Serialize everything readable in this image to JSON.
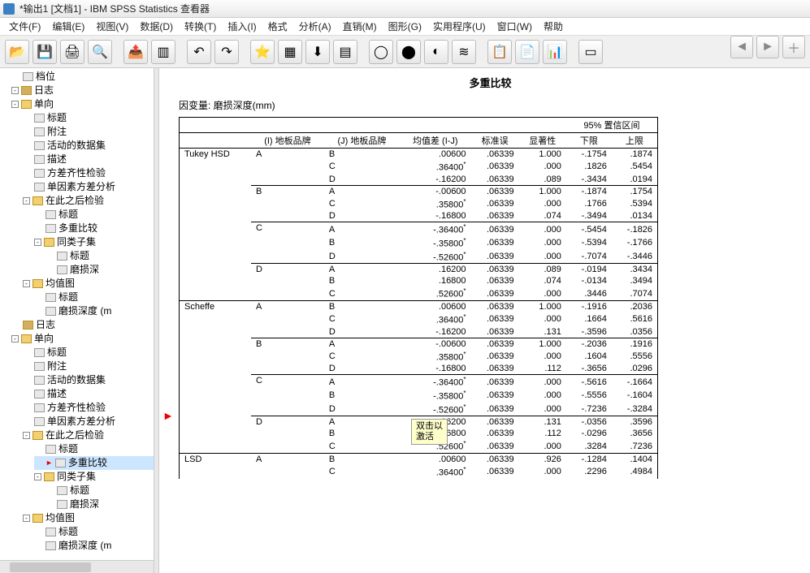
{
  "window": {
    "title": "*输出1 [文档1] - IBM SPSS Statistics 查看器"
  },
  "menu": [
    "文件(F)",
    "编辑(E)",
    "视图(V)",
    "数据(D)",
    "转换(T)",
    "插入(I)",
    "格式",
    "分析(A)",
    "直销(M)",
    "图形(G)",
    "实用程序(U)",
    "窗口(W)",
    "帮助"
  ],
  "tree": {
    "root": [
      {
        "label": "档位",
        "icon": "doc"
      },
      {
        "label": "日志",
        "icon": "log",
        "tog": "-"
      },
      {
        "label": "单向",
        "icon": "fold",
        "tog": "-",
        "children": [
          {
            "label": "标题",
            "icon": "doc"
          },
          {
            "label": "附注",
            "icon": "doc"
          },
          {
            "label": "活动的数据集",
            "icon": "doc"
          },
          {
            "label": "描述",
            "icon": "doc"
          },
          {
            "label": "方差齐性检验",
            "icon": "doc"
          },
          {
            "label": "单因素方差分析",
            "icon": "doc"
          },
          {
            "label": "在此之后检验",
            "icon": "fold",
            "tog": "-",
            "children": [
              {
                "label": "标题",
                "icon": "doc"
              },
              {
                "label": "多重比较",
                "icon": "doc"
              },
              {
                "label": "同类子集",
                "icon": "fold",
                "tog": "-",
                "children": [
                  {
                    "label": "标题",
                    "icon": "doc"
                  },
                  {
                    "label": "磨损深",
                    "icon": "doc"
                  }
                ]
              }
            ]
          },
          {
            "label": "均值图",
            "icon": "fold",
            "tog": "-",
            "children": [
              {
                "label": "标题",
                "icon": "doc"
              },
              {
                "label": "磨损深度 (m",
                "icon": "doc"
              }
            ]
          }
        ]
      },
      {
        "label": "日志",
        "icon": "log",
        "tog": ""
      },
      {
        "label": "单向",
        "icon": "fold",
        "tog": "-",
        "children": [
          {
            "label": "标题",
            "icon": "doc"
          },
          {
            "label": "附注",
            "icon": "doc"
          },
          {
            "label": "活动的数据集",
            "icon": "doc"
          },
          {
            "label": "描述",
            "icon": "doc"
          },
          {
            "label": "方差齐性检验",
            "icon": "doc"
          },
          {
            "label": "单因素方差分析",
            "icon": "doc"
          },
          {
            "label": "在此之后检验",
            "icon": "fold",
            "tog": "-",
            "children": [
              {
                "label": "标题",
                "icon": "doc"
              },
              {
                "label": "多重比较",
                "icon": "doc",
                "sel": true,
                "arrow": true
              },
              {
                "label": "同类子集",
                "icon": "fold",
                "tog": "-",
                "children": [
                  {
                    "label": "标题",
                    "icon": "doc"
                  },
                  {
                    "label": "磨损深",
                    "icon": "doc"
                  }
                ]
              }
            ]
          },
          {
            "label": "均值图",
            "icon": "fold",
            "tog": "-",
            "children": [
              {
                "label": "标题",
                "icon": "doc"
              },
              {
                "label": "磨损深度 (m",
                "icon": "doc"
              }
            ]
          }
        ]
      }
    ]
  },
  "table": {
    "title": "多重比较",
    "depvar": "因变量: 磨损深度(mm)",
    "headers": {
      "i": "(I) 地板品牌",
      "j": "(J) 地板品牌",
      "diff": "均值差 (I-J)",
      "se": "标准误",
      "sig": "显著性",
      "ci": "95% 置信区间",
      "lower": "下限",
      "upper": "上限"
    },
    "methods": [
      {
        "name": "Tukey HSD",
        "groups": [
          {
            "i": "A",
            "rows": [
              {
                "j": "B",
                "diff": ".00600",
                "se": ".06339",
                "sig": "1.000",
                "lo": "-.1754",
                "hi": ".1874"
              },
              {
                "j": "C",
                "diff": ".36400",
                "star": true,
                "se": ".06339",
                "sig": ".000",
                "lo": ".1826",
                "hi": ".5454"
              },
              {
                "j": "D",
                "diff": "-.16200",
                "se": ".06339",
                "sig": ".089",
                "lo": "-.3434",
                "hi": ".0194"
              }
            ]
          },
          {
            "i": "B",
            "rows": [
              {
                "j": "A",
                "diff": "-.00600",
                "se": ".06339",
                "sig": "1.000",
                "lo": "-.1874",
                "hi": ".1754"
              },
              {
                "j": "C",
                "diff": ".35800",
                "star": true,
                "se": ".06339",
                "sig": ".000",
                "lo": ".1766",
                "hi": ".5394"
              },
              {
                "j": "D",
                "diff": "-.16800",
                "se": ".06339",
                "sig": ".074",
                "lo": "-.3494",
                "hi": ".0134"
              }
            ]
          },
          {
            "i": "C",
            "rows": [
              {
                "j": "A",
                "diff": "-.36400",
                "star": true,
                "se": ".06339",
                "sig": ".000",
                "lo": "-.5454",
                "hi": "-.1826"
              },
              {
                "j": "B",
                "diff": "-.35800",
                "star": true,
                "se": ".06339",
                "sig": ".000",
                "lo": "-.5394",
                "hi": "-.1766"
              },
              {
                "j": "D",
                "diff": "-.52600",
                "star": true,
                "se": ".06339",
                "sig": ".000",
                "lo": "-.7074",
                "hi": "-.3446"
              }
            ]
          },
          {
            "i": "D",
            "rows": [
              {
                "j": "A",
                "diff": ".16200",
                "se": ".06339",
                "sig": ".089",
                "lo": "-.0194",
                "hi": ".3434"
              },
              {
                "j": "B",
                "diff": ".16800",
                "se": ".06339",
                "sig": ".074",
                "lo": "-.0134",
                "hi": ".3494"
              },
              {
                "j": "C",
                "diff": ".52600",
                "star": true,
                "se": ".06339",
                "sig": ".000",
                "lo": ".3446",
                "hi": ".7074"
              }
            ]
          }
        ]
      },
      {
        "name": "Scheffe",
        "groups": [
          {
            "i": "A",
            "rows": [
              {
                "j": "B",
                "diff": ".00600",
                "se": ".06339",
                "sig": "1.000",
                "lo": "-.1916",
                "hi": ".2036"
              },
              {
                "j": "C",
                "diff": ".36400",
                "star": true,
                "se": ".06339",
                "sig": ".000",
                "lo": ".1664",
                "hi": ".5616"
              },
              {
                "j": "D",
                "diff": "-.16200",
                "se": ".06339",
                "sig": ".131",
                "lo": "-.3596",
                "hi": ".0356"
              }
            ]
          },
          {
            "i": "B",
            "rows": [
              {
                "j": "A",
                "diff": "-.00600",
                "se": ".06339",
                "sig": "1.000",
                "lo": "-.2036",
                "hi": ".1916"
              },
              {
                "j": "C",
                "diff": ".35800",
                "star": true,
                "se": ".06339",
                "sig": ".000",
                "lo": ".1604",
                "hi": ".5556"
              },
              {
                "j": "D",
                "diff": "-.16800",
                "se": ".06339",
                "sig": ".112",
                "lo": "-.3656",
                "hi": ".0296"
              }
            ]
          },
          {
            "i": "C",
            "rows": [
              {
                "j": "A",
                "diff": "-.36400",
                "star": true,
                "se": ".06339",
                "sig": ".000",
                "lo": "-.5616",
                "hi": "-.1664"
              },
              {
                "j": "B",
                "diff": "-.35800",
                "star": true,
                "se": ".06339",
                "sig": ".000",
                "lo": "-.5556",
                "hi": "-.1604"
              },
              {
                "j": "D",
                "diff": "-.52600",
                "star": true,
                "se": ".06339",
                "sig": ".000",
                "lo": "-.7236",
                "hi": "-.3284"
              }
            ]
          },
          {
            "i": "D",
            "rows": [
              {
                "j": "A",
                "diff": ".16200",
                "se": ".06339",
                "sig": ".131",
                "lo": "-.0356",
                "hi": ".3596"
              },
              {
                "j": "B",
                "diff": ".16800",
                "se": ".06339",
                "sig": ".112",
                "lo": "-.0296",
                "hi": ".3656"
              },
              {
                "j": "C",
                "diff": ".52600",
                "star": true,
                "se": ".06339",
                "sig": ".000",
                "lo": ".3284",
                "hi": ".7236"
              }
            ]
          }
        ]
      },
      {
        "name": "LSD",
        "groups": [
          {
            "i": "A",
            "rows": [
              {
                "j": "B",
                "diff": ".00600",
                "se": ".06339",
                "sig": ".926",
                "lo": "-.1284",
                "hi": ".1404"
              },
              {
                "j": "C",
                "diff": ".36400",
                "star": true,
                "se": ".06339",
                "sig": ".000",
                "lo": ".2296",
                "hi": ".4984"
              }
            ]
          }
        ]
      }
    ]
  },
  "tooltip": {
    "l1": "双击以",
    "l2": "激活"
  }
}
